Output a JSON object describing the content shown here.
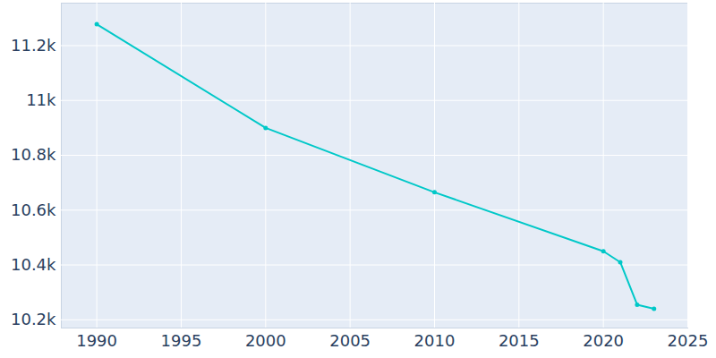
{
  "chart_data": {
    "type": "line",
    "x": [
      1990,
      2000,
      2010,
      2020,
      2021,
      2022,
      2023
    ],
    "values": [
      11278,
      10900,
      10665,
      10450,
      10410,
      10255,
      10240
    ],
    "color": "#00c8c8",
    "marker": "circle",
    "grid": true,
    "xlim": [
      1987.9,
      2025
    ],
    "xticks": [
      1990,
      1995,
      2000,
      2005,
      2010,
      2015,
      2020,
      2025
    ],
    "ylim": [
      10170,
      11355
    ],
    "yticks": [
      {
        "value": 10200,
        "label": "10.2k"
      },
      {
        "value": 10400,
        "label": "10.4k"
      },
      {
        "value": 10600,
        "label": "10.6k"
      },
      {
        "value": 10800,
        "label": "10.8k"
      },
      {
        "value": 11000,
        "label": "11k"
      },
      {
        "value": 11200,
        "label": "11.2k"
      }
    ]
  }
}
